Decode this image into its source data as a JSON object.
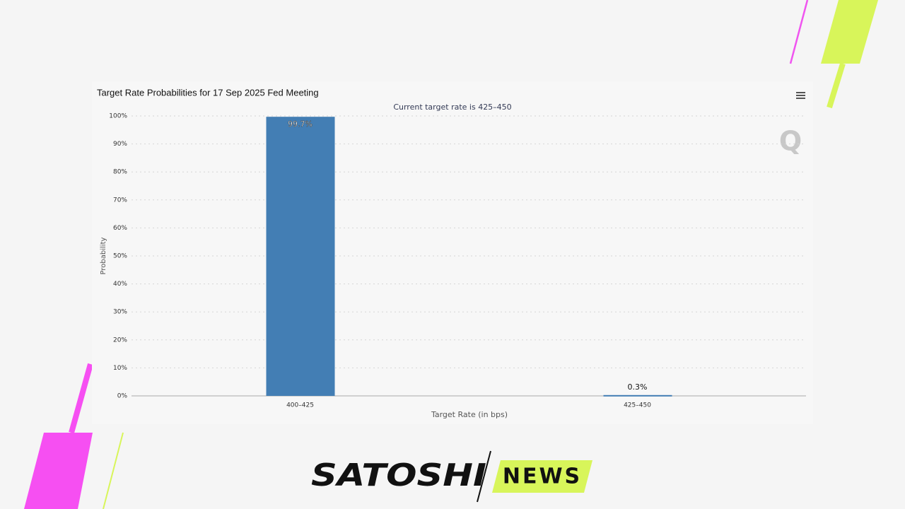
{
  "chart_data": {
    "type": "bar",
    "title": "Target Rate Probabilities for 17 Sep 2025 Fed Meeting",
    "subtitle": "Current target rate is 425–450",
    "x_label": "Target Rate (in bps)",
    "y_label": "Probability",
    "categories": [
      "400–425",
      "425–450"
    ],
    "values": [
      99.7,
      0.3
    ],
    "value_labels": [
      "99.7%",
      "0.3%"
    ],
    "color": "#437eb4",
    "ylim": [
      0,
      100
    ],
    "yticks": [
      {
        "value": 0,
        "label": "0%"
      },
      {
        "value": 10,
        "label": "10%"
      },
      {
        "value": 20,
        "label": "20%"
      },
      {
        "value": 30,
        "label": "30%"
      },
      {
        "value": 40,
        "label": "40%"
      },
      {
        "value": 50,
        "label": "50%"
      },
      {
        "value": 60,
        "label": "60%"
      },
      {
        "value": 70,
        "label": "70%"
      },
      {
        "value": 80,
        "label": "80%"
      },
      {
        "value": 90,
        "label": "90%"
      },
      {
        "value": 100,
        "label": "100%"
      }
    ],
    "grid": true
  },
  "watermark": "Q",
  "branding": {
    "logo_left": "SATOSHI",
    "logo_right": "NEWS"
  }
}
